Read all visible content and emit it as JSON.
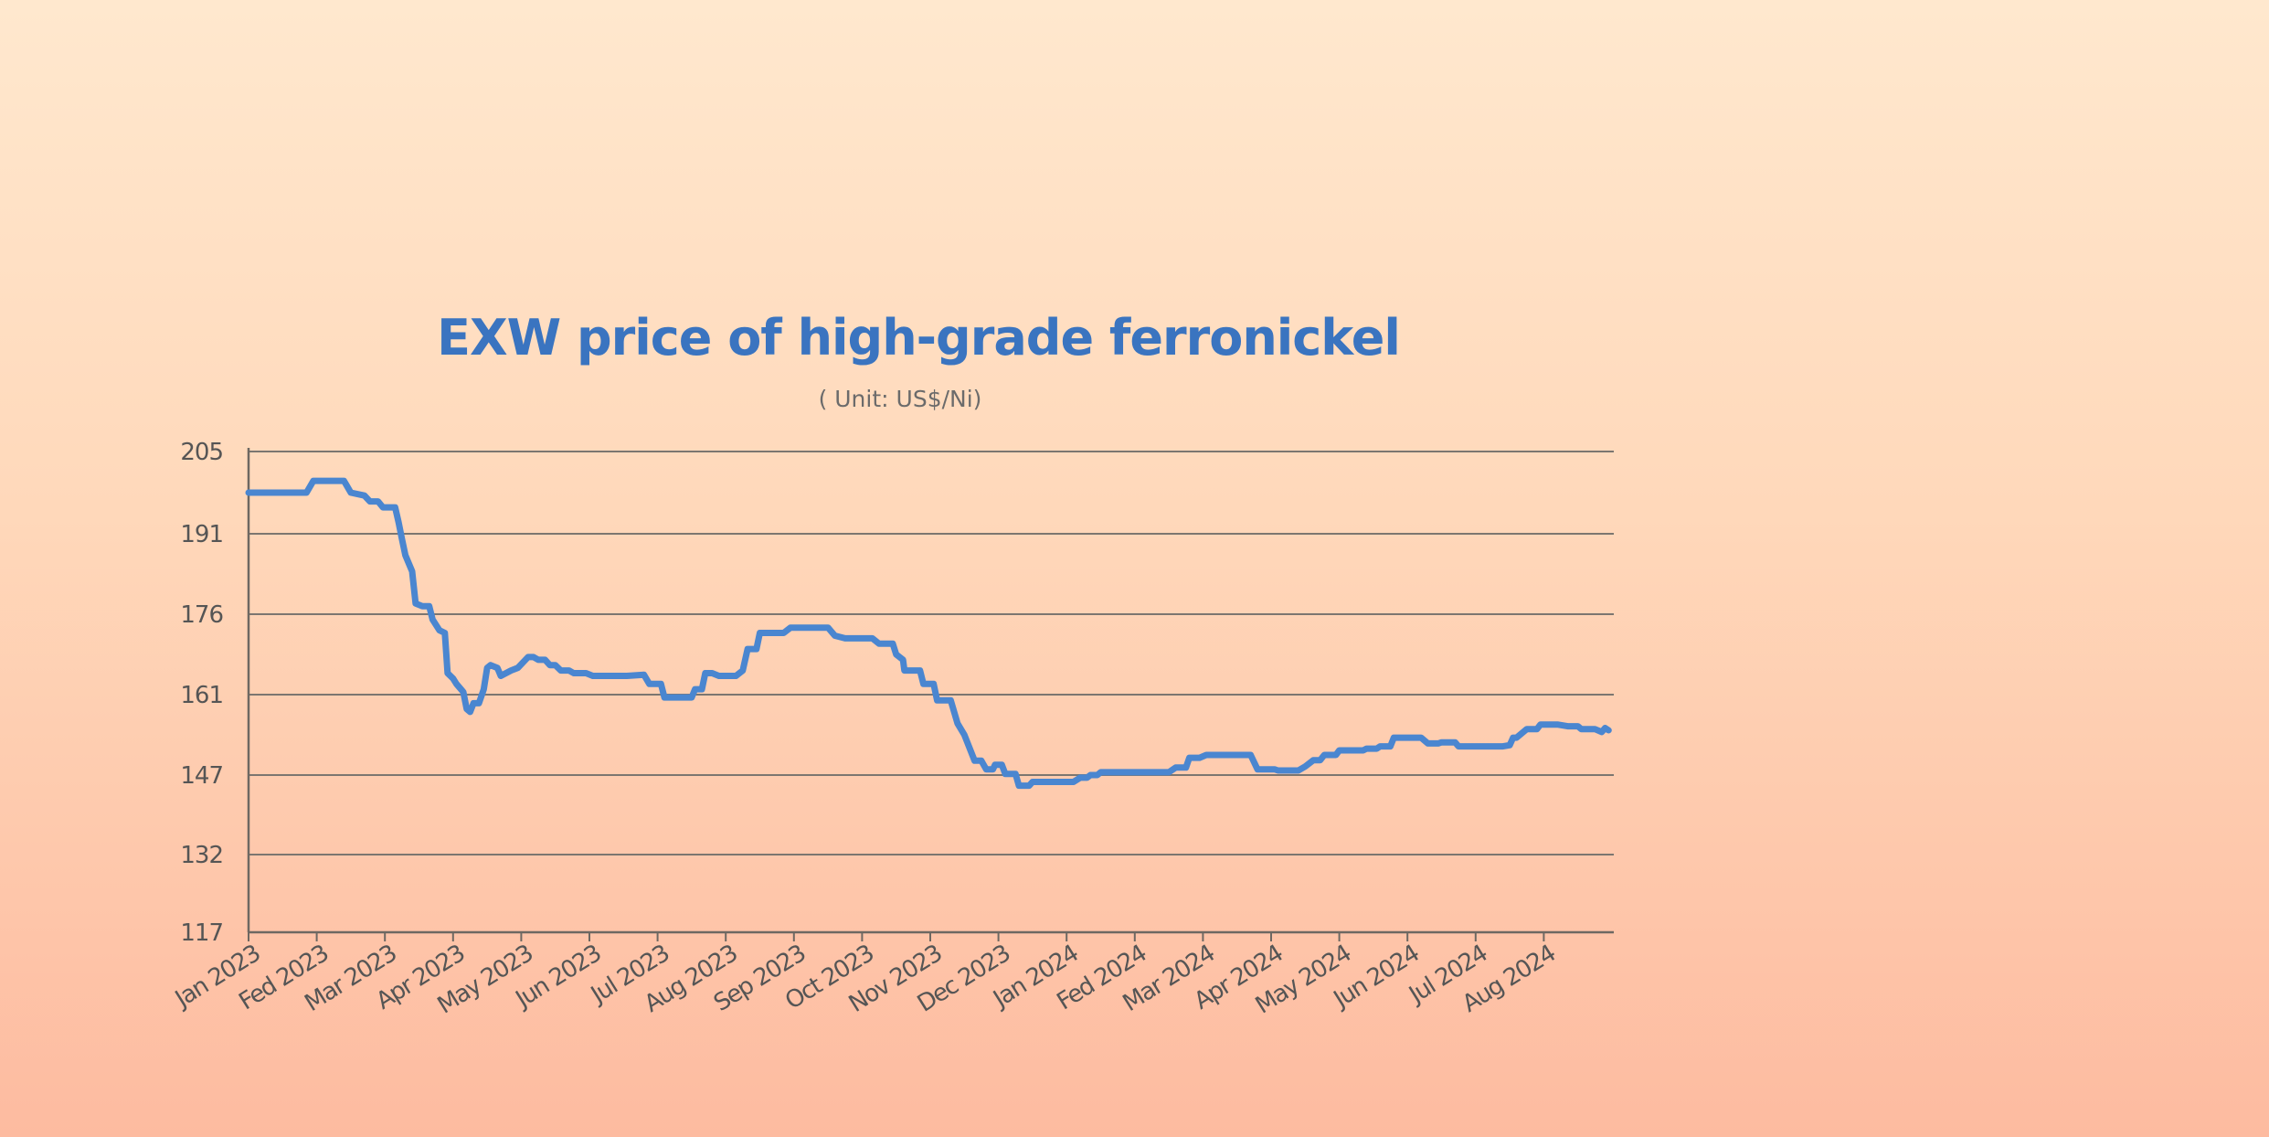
{
  "chart_data": {
    "type": "line",
    "title": "EXW price of high-grade ferronickel",
    "subtitle": "( Unit: US$/Ni)",
    "xlabel": "",
    "ylabel": "",
    "ylim": [
      117,
      205
    ],
    "y_ticks": [
      "205",
      "191",
      "176",
      "161",
      "147",
      "132",
      "117"
    ],
    "y_tick_values": [
      205,
      191,
      176,
      161,
      147,
      132,
      117
    ],
    "x_ticks": [
      "Jan 2023",
      "Fed 2023",
      "Mar 2023",
      "Apr 2023",
      "May 2023",
      "Jun 2023",
      "Jul 2023",
      "Aug 2023",
      "Sep 2023",
      "Oct 2023",
      "Nov 2023",
      "Dec 2023",
      "Jan 2024",
      "Fed 2024",
      "Mar 2024",
      "Apr 2024",
      "May 2024",
      "Jun 2024",
      "Jul 2024",
      "Aug 2024"
    ],
    "grid": true,
    "legend": "none",
    "line_color": "#4A86D0",
    "series": [
      {
        "points": [
          [
            0,
            198
          ],
          [
            0.85,
            198
          ],
          [
            0.95,
            200
          ],
          [
            1.4,
            200
          ],
          [
            1.5,
            198
          ],
          [
            1.7,
            197.5
          ],
          [
            1.78,
            196.5
          ],
          [
            1.9,
            196.5
          ],
          [
            1.97,
            195.5
          ],
          [
            2.15,
            195.5
          ],
          [
            2.2,
            193
          ],
          [
            2.25,
            190
          ],
          [
            2.3,
            187
          ],
          [
            2.4,
            184
          ],
          [
            2.45,
            178
          ],
          [
            2.55,
            177.5
          ],
          [
            2.65,
            177.5
          ],
          [
            2.7,
            175
          ],
          [
            2.8,
            173
          ],
          [
            2.88,
            172.5
          ],
          [
            2.92,
            165
          ],
          [
            3.0,
            164
          ],
          [
            3.05,
            163
          ],
          [
            3.15,
            161.5
          ],
          [
            3.2,
            158.5
          ],
          [
            3.25,
            158
          ],
          [
            3.3,
            159.5
          ],
          [
            3.38,
            159.5
          ],
          [
            3.45,
            162
          ],
          [
            3.5,
            166
          ],
          [
            3.55,
            166.5
          ],
          [
            3.65,
            166
          ],
          [
            3.7,
            164.5
          ],
          [
            3.85,
            165.5
          ],
          [
            3.95,
            166
          ],
          [
            4.1,
            168
          ],
          [
            4.18,
            168
          ],
          [
            4.25,
            167.5
          ],
          [
            4.35,
            167.5
          ],
          [
            4.42,
            166.5
          ],
          [
            4.5,
            166.5
          ],
          [
            4.58,
            165.5
          ],
          [
            4.7,
            165.5
          ],
          [
            4.77,
            165
          ],
          [
            4.95,
            165
          ],
          [
            5.05,
            164.5
          ],
          [
            5.55,
            164.5
          ],
          [
            5.8,
            164.7
          ],
          [
            5.88,
            163
          ],
          [
            6.05,
            163
          ],
          [
            6.1,
            160.5
          ],
          [
            6.5,
            160.5
          ],
          [
            6.55,
            162
          ],
          [
            6.65,
            162
          ],
          [
            6.7,
            165
          ],
          [
            6.8,
            165
          ],
          [
            6.9,
            164.5
          ],
          [
            7.15,
            164.5
          ],
          [
            7.25,
            165.5
          ],
          [
            7.32,
            169.5
          ],
          [
            7.45,
            169.5
          ],
          [
            7.5,
            172.5
          ],
          [
            7.85,
            172.5
          ],
          [
            7.95,
            173.5
          ],
          [
            8.5,
            173.5
          ],
          [
            8.6,
            172
          ],
          [
            8.75,
            171.5
          ],
          [
            9.15,
            171.5
          ],
          [
            9.25,
            170.5
          ],
          [
            9.45,
            170.5
          ],
          [
            9.5,
            168.5
          ],
          [
            9.6,
            167.5
          ],
          [
            9.62,
            165.5
          ],
          [
            9.85,
            165.5
          ],
          [
            9.9,
            163
          ],
          [
            10.05,
            163
          ],
          [
            10.1,
            160
          ],
          [
            10.3,
            160
          ],
          [
            10.4,
            156
          ],
          [
            10.5,
            154
          ],
          [
            10.6,
            151
          ],
          [
            10.65,
            149.5
          ],
          [
            10.75,
            149.5
          ],
          [
            10.82,
            148
          ],
          [
            10.92,
            148
          ],
          [
            10.95,
            148.8
          ],
          [
            11.05,
            148.8
          ],
          [
            11.1,
            147.2
          ],
          [
            11.25,
            147.2
          ],
          [
            11.3,
            145
          ],
          [
            11.45,
            145
          ],
          [
            11.5,
            145.7
          ],
          [
            12.1,
            145.7
          ],
          [
            12.2,
            146.5
          ],
          [
            12.3,
            146.5
          ],
          [
            12.35,
            147
          ],
          [
            12.45,
            147
          ],
          [
            12.5,
            147.5
          ],
          [
            13.5,
            147.5
          ],
          [
            13.6,
            148.3
          ],
          [
            13.75,
            148.3
          ],
          [
            13.8,
            150
          ],
          [
            13.95,
            150
          ],
          [
            14.05,
            150.5
          ],
          [
            14.7,
            150.5
          ],
          [
            14.8,
            148
          ],
          [
            15.05,
            148
          ],
          [
            15.1,
            147.8
          ],
          [
            15.4,
            147.8
          ],
          [
            15.5,
            148.5
          ],
          [
            15.62,
            149.6
          ],
          [
            15.72,
            149.6
          ],
          [
            15.78,
            150.5
          ],
          [
            15.95,
            150.5
          ],
          [
            16.0,
            151.3
          ],
          [
            16.35,
            151.3
          ],
          [
            16.4,
            151.6
          ],
          [
            16.55,
            151.6
          ],
          [
            16.6,
            152
          ],
          [
            16.75,
            152
          ],
          [
            16.8,
            153.5
          ],
          [
            17.2,
            153.5
          ],
          [
            17.3,
            152.5
          ],
          [
            17.45,
            152.5
          ],
          [
            17.5,
            152.7
          ],
          [
            17.7,
            152.7
          ],
          [
            17.75,
            152
          ],
          [
            18.4,
            152
          ],
          [
            18.5,
            152.2
          ],
          [
            18.55,
            153.5
          ],
          [
            18.6,
            153.5
          ],
          [
            18.75,
            155
          ],
          [
            18.9,
            155
          ],
          [
            18.95,
            155.8
          ],
          [
            19.2,
            155.8
          ],
          [
            19.35,
            155.5
          ],
          [
            19.5,
            155.5
          ],
          [
            19.55,
            155
          ],
          [
            19.75,
            155
          ],
          [
            19.85,
            154.5
          ],
          [
            19.9,
            155.2
          ],
          [
            19.95,
            154.8
          ]
        ]
      }
    ]
  }
}
